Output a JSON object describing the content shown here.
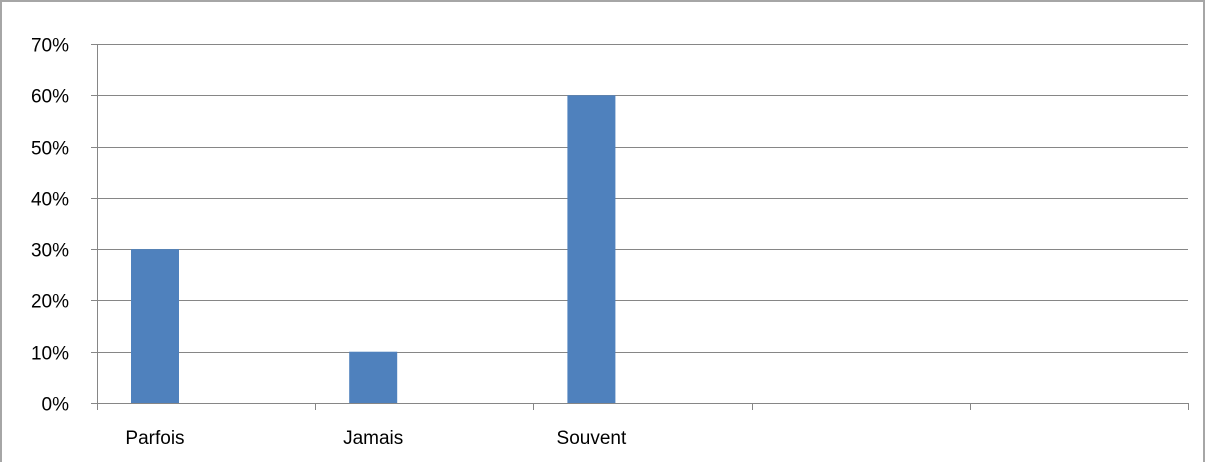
{
  "chart_data": {
    "type": "bar",
    "categories": [
      "Parfois",
      "Jamais",
      "Souvent",
      "",
      ""
    ],
    "values": [
      0.3,
      0.1,
      0.6,
      null,
      null
    ],
    "ylim": [
      0,
      0.7
    ],
    "y_ticks": [
      0,
      0.1,
      0.2,
      0.3,
      0.4,
      0.5,
      0.6,
      0.7
    ],
    "y_tick_labels": [
      "0%",
      "10%",
      "20%",
      "30%",
      "40%",
      "50%",
      "60%",
      "70%"
    ],
    "grid": true,
    "legend": "none",
    "bar_color": "#4f81bd",
    "grid_color": "#868686",
    "axis_color": "#868686"
  }
}
